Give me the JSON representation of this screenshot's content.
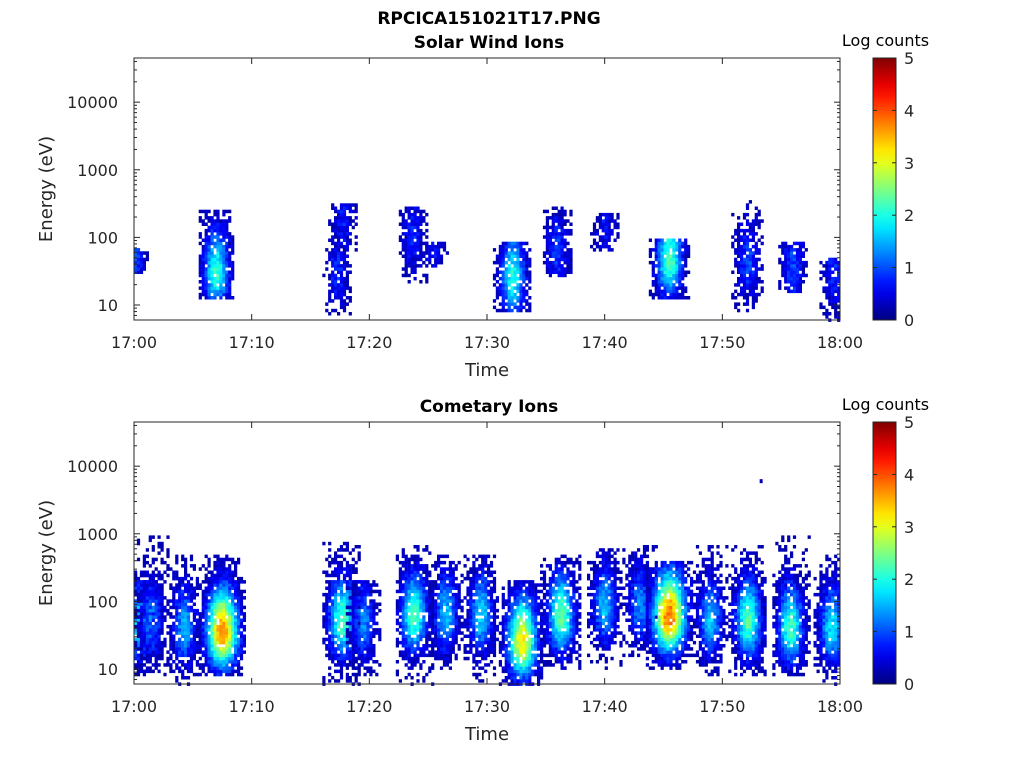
{
  "figure_title": "RPCICA151021T17.PNG",
  "chart_data": [
    {
      "type": "heatmap",
      "title": "Solar Wind Ions",
      "xlabel": "Time",
      "ylabel": "Energy (eV)",
      "x_ticks": [
        "17:00",
        "17:10",
        "17:20",
        "17:30",
        "17:40",
        "17:50",
        "18:00"
      ],
      "xlim": [
        "17:00",
        "18:00"
      ],
      "y_scale": "log",
      "y_ticks": [
        10,
        100,
        1000,
        10000
      ],
      "ylim": [
        6,
        45000
      ],
      "colorbar": {
        "label": "Log counts",
        "range": [
          0,
          5
        ],
        "ticks": [
          0,
          1,
          2,
          3,
          4,
          5
        ]
      },
      "colormap": "jet",
      "grid": false,
      "bursts": [
        {
          "t": 0.0,
          "e": 50,
          "c": 1.0,
          "low": 30,
          "high": 70
        },
        {
          "t": 7.0,
          "e": 30,
          "c": 2.1,
          "low": 12,
          "high": 270
        },
        {
          "t": 17.3,
          "e": 30,
          "c": 0.8,
          "low": 7,
          "high": 70
        },
        {
          "t": 17.8,
          "e": 160,
          "c": 0.7,
          "low": 60,
          "high": 320
        },
        {
          "t": 23.7,
          "e": 100,
          "c": 0.8,
          "low": 20,
          "high": 300
        },
        {
          "t": 25.5,
          "e": 70,
          "c": 0.6,
          "low": 35,
          "high": 90
        },
        {
          "t": 32.2,
          "e": 25,
          "c": 2.0,
          "low": 8,
          "high": 90
        },
        {
          "t": 36.0,
          "e": 60,
          "c": 0.9,
          "low": 25,
          "high": 280
        },
        {
          "t": 40.0,
          "e": 150,
          "c": 0.6,
          "low": 60,
          "high": 220
        },
        {
          "t": 45.5,
          "e": 45,
          "c": 2.3,
          "low": 12,
          "high": 100
        },
        {
          "t": 52.2,
          "e": 40,
          "c": 1.0,
          "low": 8,
          "high": 350
        },
        {
          "t": 56.0,
          "e": 35,
          "c": 1.0,
          "low": 15,
          "high": 90
        },
        {
          "t": 59.5,
          "e": 30,
          "c": 0.8,
          "low": 6,
          "high": 50
        }
      ]
    },
    {
      "type": "heatmap",
      "title": "Cometary Ions",
      "xlabel": "Time",
      "ylabel": "Energy (eV)",
      "x_ticks": [
        "17:00",
        "17:10",
        "17:20",
        "17:30",
        "17:40",
        "17:50",
        "18:00"
      ],
      "xlim": [
        "17:00",
        "18:00"
      ],
      "y_scale": "log",
      "y_ticks": [
        10,
        100,
        1000,
        10000
      ],
      "ylim": [
        6,
        45000
      ],
      "colorbar": {
        "label": "Log counts",
        "range": [
          0,
          5
        ],
        "ticks": [
          0,
          1,
          2,
          3,
          4,
          5
        ]
      },
      "colormap": "jet",
      "grid": false,
      "bursts": [
        {
          "t": 0.5,
          "e": 45,
          "c": 1.8,
          "low": 8,
          "high": 300
        },
        {
          "t": 1.5,
          "e": 50,
          "c": 1.2,
          "low": 8,
          "high": 900
        },
        {
          "t": 4.3,
          "e": 40,
          "c": 1.5,
          "low": 6,
          "high": 500
        },
        {
          "t": 7.5,
          "e": 35,
          "c": 3.7,
          "low": 8,
          "high": 500
        },
        {
          "t": 17.7,
          "e": 50,
          "c": 2.3,
          "low": 6,
          "high": 800
        },
        {
          "t": 19.5,
          "e": 45,
          "c": 1.3,
          "low": 8,
          "high": 200
        },
        {
          "t": 23.8,
          "e": 60,
          "c": 2.3,
          "low": 6,
          "high": 700
        },
        {
          "t": 26.5,
          "e": 60,
          "c": 1.6,
          "low": 10,
          "high": 500
        },
        {
          "t": 29.5,
          "e": 60,
          "c": 1.7,
          "low": 6,
          "high": 500
        },
        {
          "t": 33.0,
          "e": 25,
          "c": 3.2,
          "low": 6,
          "high": 200
        },
        {
          "t": 36.3,
          "e": 60,
          "c": 2.4,
          "low": 10,
          "high": 500
        },
        {
          "t": 40.0,
          "e": 80,
          "c": 1.6,
          "low": 10,
          "high": 600
        },
        {
          "t": 43.0,
          "e": 80,
          "c": 1.3,
          "low": 15,
          "high": 700
        },
        {
          "t": 45.5,
          "e": 60,
          "c": 3.9,
          "low": 10,
          "high": 400
        },
        {
          "t": 49.0,
          "e": 50,
          "c": 1.6,
          "low": 8,
          "high": 700
        },
        {
          "t": 52.2,
          "e": 50,
          "c": 2.3,
          "low": 8,
          "high": 700
        },
        {
          "t": 55.8,
          "e": 40,
          "c": 2.2,
          "low": 8,
          "high": 900
        },
        {
          "t": 59.3,
          "e": 40,
          "c": 1.8,
          "low": 6,
          "high": 500
        }
      ],
      "outliers": [
        {
          "t": 53.3,
          "e": 6000,
          "c": 0.3
        }
      ]
    }
  ]
}
